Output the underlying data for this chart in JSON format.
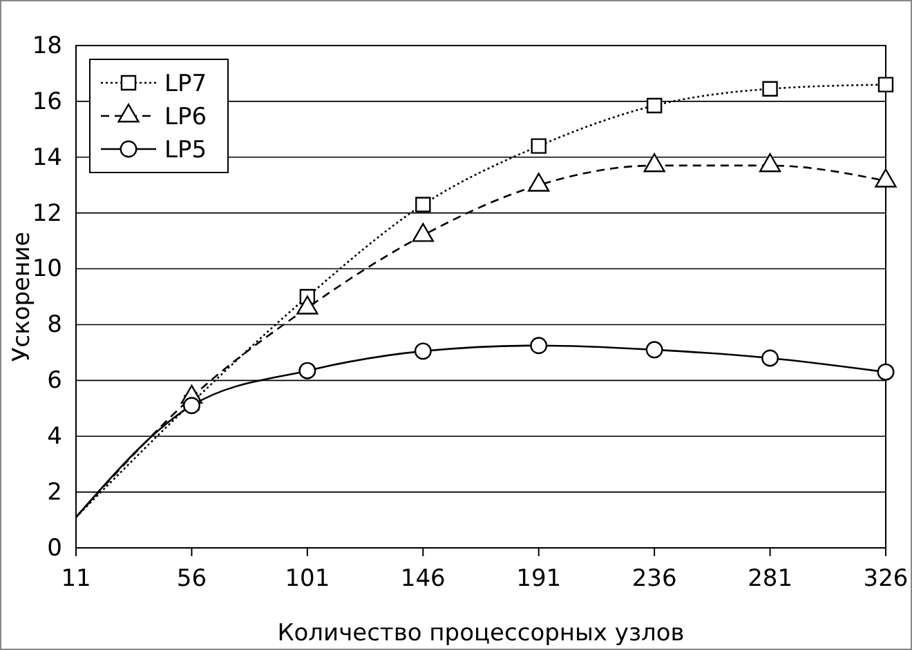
{
  "chart_data": {
    "type": "line",
    "xlabel": "Количество процессорных узлов",
    "ylabel": "Ускорение",
    "x": [
      11,
      56,
      101,
      146,
      191,
      236,
      281,
      326
    ],
    "xlim": [
      11,
      326
    ],
    "xticks": [
      11,
      56,
      101,
      146,
      191,
      236,
      281,
      326
    ],
    "ylim": [
      0,
      18
    ],
    "yticks": [
      0,
      2,
      4,
      6,
      8,
      10,
      12,
      14,
      16,
      18
    ],
    "grid": "y",
    "legend": "top left",
    "series": [
      {
        "name": "LP7",
        "color": "#000000",
        "marker": "square",
        "line_style": "dotted",
        "values": [
          1.1,
          5.2,
          9.0,
          12.3,
          14.4,
          15.85,
          16.45,
          16.6
        ]
      },
      {
        "name": "LP6",
        "color": "#000000",
        "marker": "triangle",
        "line_style": "dashed",
        "values": [
          1.1,
          5.4,
          8.6,
          11.2,
          13.0,
          13.7,
          13.7,
          13.15
        ]
      },
      {
        "name": "LP5",
        "color": "#000000",
        "marker": "circle",
        "line_style": "solid",
        "values": [
          1.1,
          5.1,
          6.35,
          7.05,
          7.25,
          7.1,
          6.8,
          6.3
        ]
      }
    ]
  }
}
